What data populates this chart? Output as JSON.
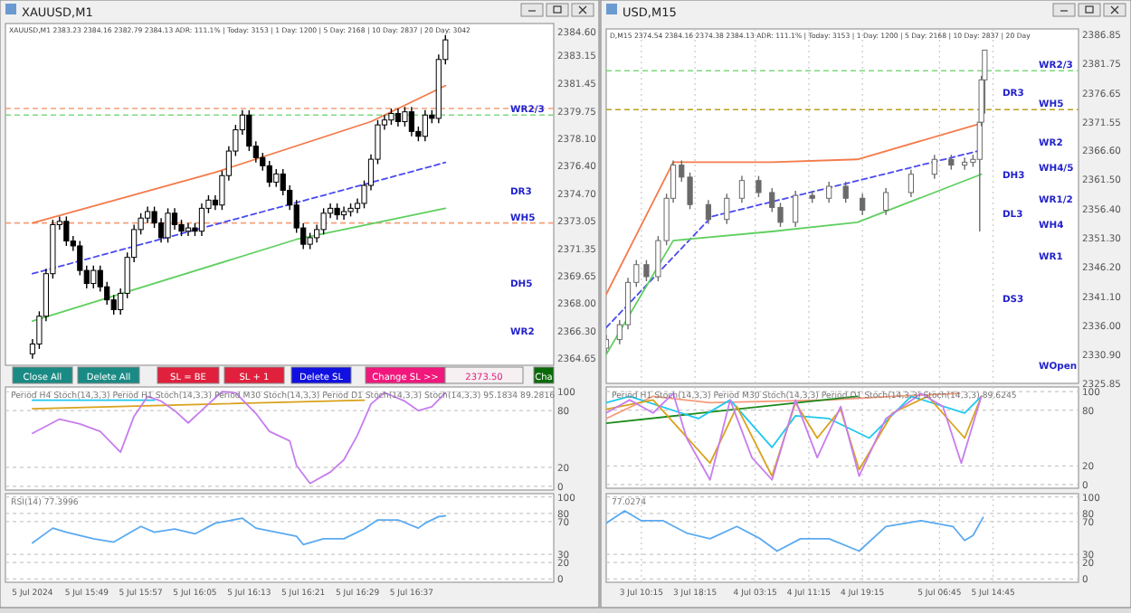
{
  "chart_data": [
    {
      "type": "candlestick",
      "title": "XAUUSD,M1",
      "subtitle": "XAUUSD,M1 2383.23 2384.16 2382.79 2384.13   ADR: 111.1% | Today: 3153 | 1 Day: 1200 | 5 Day: 2168 | 10 Day: 2837 | 20 Day: 3042",
      "color": "#000000",
      "tick_labels": "y",
      "x": [
        "2024-07-05T15:41",
        "2024-07-05T15:42",
        "2024-07-05T15:43",
        "2024-07-05T15:44",
        "2024-07-05T15:45",
        "2024-07-05T15:46",
        "2024-07-05T15:47",
        "2024-07-05T15:48",
        "2024-07-05T15:49",
        "2024-07-05T15:50",
        "2024-07-05T15:51",
        "2024-07-05T15:52",
        "2024-07-05T15:53",
        "2024-07-05T15:54",
        "2024-07-05T15:55",
        "2024-07-05T15:56",
        "2024-07-05T15:57",
        "2024-07-05T15:58",
        "2024-07-05T15:59",
        "2024-07-05T16:00",
        "2024-07-05T16:01",
        "2024-07-05T16:02",
        "2024-07-05T16:03",
        "2024-07-05T16:04",
        "2024-07-05T16:05",
        "2024-07-05T16:06",
        "2024-07-05T16:07",
        "2024-07-05T16:08",
        "2024-07-05T16:09",
        "2024-07-05T16:10",
        "2024-07-05T16:11",
        "2024-07-05T16:12",
        "2024-07-05T16:13",
        "2024-07-05T16:14",
        "2024-07-05T16:15",
        "2024-07-05T16:16",
        "2024-07-05T16:17",
        "2024-07-05T16:18",
        "2024-07-05T16:19",
        "2024-07-05T16:20",
        "2024-07-05T16:21",
        "2024-07-05T16:22",
        "2024-07-05T16:23",
        "2024-07-05T16:24",
        "2024-07-05T16:25",
        "2024-07-05T16:26",
        "2024-07-05T16:27",
        "2024-07-05T16:28",
        "2024-07-05T16:29",
        "2024-07-05T16:30",
        "2024-07-05T16:31",
        "2024-07-05T16:32",
        "2024-07-05T16:33",
        "2024-07-05T16:34",
        "2024-07-05T16:35",
        "2024-07-05T16:36",
        "2024-07-05T16:37",
        "2024-07-05T16:38",
        "2024-07-05T16:39",
        "2024-07-05T16:40",
        "2024-07-05T16:41",
        "2024-07-05T16:42"
      ],
      "ohlc": [
        [
          2364.9,
          2365.8,
          2364.6,
          2365.5
        ],
        [
          2365.5,
          2367.5,
          2365.2,
          2367.2
        ],
        [
          2367.2,
          2370.1,
          2366.9,
          2369.8
        ],
        [
          2369.8,
          2373.1,
          2369.5,
          2372.8
        ],
        [
          2372.8,
          2373.3,
          2372.5,
          2373.0
        ],
        [
          2373.0,
          2373.3,
          2371.5,
          2371.8
        ],
        [
          2371.8,
          2372.1,
          2371.2,
          2371.5
        ],
        [
          2371.5,
          2371.8,
          2369.7,
          2370.0
        ],
        [
          2370.0,
          2370.3,
          2368.9,
          2369.2
        ],
        [
          2369.2,
          2370.3,
          2368.9,
          2370.0
        ],
        [
          2370.0,
          2370.3,
          2368.7,
          2369.0
        ],
        [
          2369.0,
          2369.3,
          2367.9,
          2368.2
        ],
        [
          2368.2,
          2368.5,
          2367.3,
          2367.6
        ],
        [
          2367.6,
          2368.9,
          2367.3,
          2368.6
        ],
        [
          2368.6,
          2371.1,
          2368.3,
          2370.8
        ],
        [
          2370.8,
          2372.8,
          2370.5,
          2372.5
        ],
        [
          2372.5,
          2373.5,
          2372.2,
          2373.2
        ],
        [
          2373.2,
          2373.9,
          2372.9,
          2373.6
        ],
        [
          2373.6,
          2373.9,
          2372.6,
          2372.9
        ],
        [
          2372.9,
          2373.2,
          2371.7,
          2372.0
        ],
        [
          2372.0,
          2373.8,
          2371.7,
          2373.5
        ],
        [
          2373.5,
          2373.8,
          2372.5,
          2372.8
        ],
        [
          2372.8,
          2373.1,
          2372.1,
          2372.4
        ],
        [
          2372.4,
          2372.9,
          2372.1,
          2372.6
        ],
        [
          2372.6,
          2372.9,
          2372.1,
          2372.4
        ],
        [
          2372.4,
          2374.1,
          2372.1,
          2373.8
        ],
        [
          2373.8,
          2374.6,
          2373.5,
          2374.3
        ],
        [
          2374.3,
          2374.6,
          2373.7,
          2374.0
        ],
        [
          2374.0,
          2376.1,
          2373.7,
          2375.8
        ],
        [
          2375.8,
          2377.6,
          2375.5,
          2377.3
        ],
        [
          2377.3,
          2378.9,
          2377.0,
          2378.6
        ],
        [
          2378.6,
          2379.8,
          2378.3,
          2379.5
        ],
        [
          2379.5,
          2379.8,
          2377.3,
          2377.6
        ],
        [
          2377.6,
          2377.9,
          2376.6,
          2376.9
        ],
        [
          2376.9,
          2377.2,
          2376.1,
          2376.4
        ],
        [
          2376.4,
          2376.7,
          2375.1,
          2375.4
        ],
        [
          2375.4,
          2376.2,
          2375.1,
          2375.9
        ],
        [
          2375.9,
          2376.2,
          2374.6,
          2374.9
        ],
        [
          2374.9,
          2375.2,
          2373.7,
          2374.0
        ],
        [
          2374.0,
          2374.3,
          2372.3,
          2372.6
        ],
        [
          2372.6,
          2372.9,
          2371.3,
          2371.6
        ],
        [
          2371.6,
          2372.3,
          2371.3,
          2372.0
        ],
        [
          2372.0,
          2372.8,
          2371.7,
          2372.5
        ],
        [
          2372.5,
          2373.8,
          2372.2,
          2373.5
        ],
        [
          2373.5,
          2374.1,
          2373.2,
          2373.8
        ],
        [
          2373.8,
          2374.1,
          2373.1,
          2373.4
        ],
        [
          2373.4,
          2373.9,
          2373.1,
          2373.6
        ],
        [
          2373.6,
          2374.1,
          2373.3,
          2373.8
        ],
        [
          2373.8,
          2374.4,
          2373.5,
          2374.1
        ],
        [
          2374.1,
          2375.5,
          2373.8,
          2375.2
        ],
        [
          2375.2,
          2377.1,
          2374.9,
          2376.8
        ],
        [
          2376.8,
          2379.2,
          2376.5,
          2378.9
        ],
        [
          2378.9,
          2379.5,
          2378.6,
          2379.2
        ],
        [
          2379.2,
          2379.9,
          2378.9,
          2379.6
        ],
        [
          2379.6,
          2379.9,
          2378.8,
          2379.1
        ],
        [
          2379.1,
          2380.0,
          2378.8,
          2379.7
        ],
        [
          2379.7,
          2380.0,
          2378.2,
          2378.5
        ],
        [
          2378.5,
          2378.8,
          2377.9,
          2378.2
        ],
        [
          2378.2,
          2379.8,
          2377.9,
          2379.5
        ],
        [
          2379.5,
          2379.8,
          2379.0,
          2379.3
        ],
        [
          2379.3,
          2383.2,
          2379.0,
          2382.9
        ],
        [
          2382.9,
          2384.4,
          2382.6,
          2384.1
        ]
      ],
      "series": [
        {
          "type": "line",
          "color": "#f47a4a",
          "x": [
            "2024-07-05T15:41",
            "2024-07-05T16:08",
            "2024-07-05T16:31",
            "2024-07-05T16:42"
          ],
          "values": [
            2372.9,
            2376.0,
            2379.1,
            2381.3
          ]
        },
        {
          "type": "line",
          "color": "#4a4af0",
          "line_style": "dashed",
          "x": [
            "2024-07-05T15:41",
            "2024-07-05T16:42"
          ],
          "values": [
            2369.8,
            2376.6
          ]
        },
        {
          "type": "line",
          "color": "#5fcf5f",
          "x": [
            "2024-07-05T15:41",
            "2024-07-05T16:20",
            "2024-07-05T16:42"
          ],
          "values": [
            2366.9,
            2371.9,
            2373.8
          ]
        }
      ],
      "ref_lines": [
        {
          "axis": "y",
          "value": 2379.9,
          "color": "#f4a07a",
          "line_style": "dashed"
        },
        {
          "axis": "y",
          "value": 2379.5,
          "color": "#7fd87f",
          "line_style": "dashed",
          "label": "WR2/3"
        },
        {
          "axis": "y",
          "value": 2372.9,
          "color": "#f4a07a",
          "line_style": "dashed",
          "label": "WH5"
        }
      ],
      "annotations": [
        "Close All",
        "Delete All",
        "SL = BE",
        "SL + 1",
        "Delete SL",
        "Change SL >>",
        "2373.50",
        "Cha",
        "DR3",
        "DH5",
        "WR2"
      ],
      "xlim": [
        "2024-07-05T15:37",
        "2024-07-05T16:58"
      ],
      "ylim": [
        2364.2,
        2385.1
      ],
      "yticks": [
        {
          "value": 2384.6,
          "label": "2384.60"
        },
        {
          "value": 2383.15,
          "label": "2383.15"
        },
        {
          "value": 2381.45,
          "label": "2381.45"
        },
        {
          "value": 2379.75,
          "label": "2379.75"
        },
        {
          "value": 2378.1,
          "label": "2378.10"
        },
        {
          "value": 2376.4,
          "label": "2376.40"
        },
        {
          "value": 2374.7,
          "label": "2374.70"
        },
        {
          "value": 2373.05,
          "label": "2373.05"
        },
        {
          "value": 2371.35,
          "label": "2371.35"
        },
        {
          "value": 2369.65,
          "label": "2369.65"
        },
        {
          "value": 2368.0,
          "label": "2368.00"
        },
        {
          "value": 2366.3,
          "label": "2366.30"
        },
        {
          "value": 2364.65,
          "label": "2364.65"
        }
      ]
    },
    {
      "type": "line",
      "title": "Period H4 Stoch(14,3,3)  Period H1 Stoch(14,3,3)  Period M30 Stoch(14,3,3)  Period D1 Stoch(14,3,3)  Stoch(14,3,3) 95.1834 89.2816",
      "tick_labels": "y",
      "grid": "y",
      "series": [
        {
          "color": "#1ec8f0",
          "x": [
            "2024-07-05T15:41",
            "2024-07-05T15:59"
          ],
          "values": [
            91,
            91
          ]
        },
        {
          "color": "#d9a21b",
          "x": [
            "2024-07-05T15:41",
            "2024-07-05T16:30"
          ],
          "values": [
            82,
            91
          ]
        },
        {
          "color": "#c77dee",
          "x": [
            "2024-07-05T15:41",
            "2024-07-05T15:45",
            "2024-07-05T15:48",
            "2024-07-05T15:51",
            "2024-07-05T15:54",
            "2024-07-05T15:56",
            "2024-07-05T15:58",
            "2024-07-05T16:00",
            "2024-07-05T16:02",
            "2024-07-05T16:04",
            "2024-07-05T16:07",
            "2024-07-05T16:09",
            "2024-07-05T16:11",
            "2024-07-05T16:14",
            "2024-07-05T16:16",
            "2024-07-05T16:19",
            "2024-07-05T16:20",
            "2024-07-05T16:22",
            "2024-07-05T16:25",
            "2024-07-05T16:27",
            "2024-07-05T16:29",
            "2024-07-05T16:31",
            "2024-07-05T16:33",
            "2024-07-05T16:36",
            "2024-07-05T16:38",
            "2024-07-05T16:40",
            "2024-07-05T16:42"
          ],
          "values": [
            56,
            71,
            66,
            58,
            36,
            74,
            95,
            90,
            80,
            67,
            87,
            100,
            99,
            77,
            58,
            48,
            22,
            3,
            15,
            28,
            54,
            87,
            99,
            90,
            80,
            84,
            99
          ]
        }
      ],
      "xlim": [
        "2024-07-05T15:37",
        "2024-07-05T16:58"
      ],
      "ylim": [
        -4,
        105
      ],
      "yticks": [
        0,
        20,
        80,
        100
      ]
    },
    {
      "type": "line",
      "title": "RSI(14) 77.3996",
      "grid": "y",
      "series": [
        {
          "color": "#5aaaf0",
          "x": [
            "2024-07-05T15:41",
            "2024-07-05T15:44",
            "2024-07-05T15:46",
            "2024-07-05T15:50",
            "2024-07-05T15:53",
            "2024-07-05T15:57",
            "2024-07-05T15:59",
            "2024-07-05T16:02",
            "2024-07-05T16:05",
            "2024-07-05T16:08",
            "2024-07-05T16:12",
            "2024-07-05T16:14",
            "2024-07-05T16:17",
            "2024-07-05T16:20",
            "2024-07-05T16:21",
            "2024-07-05T16:24",
            "2024-07-05T16:27",
            "2024-07-05T16:30",
            "2024-07-05T16:32",
            "2024-07-05T16:35",
            "2024-07-05T16:38",
            "2024-07-05T16:39",
            "2024-07-05T16:41",
            "2024-07-05T16:42"
          ],
          "values": [
            44,
            62,
            57,
            49,
            45,
            64,
            57,
            61,
            55,
            68,
            74,
            62,
            57,
            52,
            42,
            49,
            49,
            61,
            72,
            72,
            62,
            68,
            76,
            77
          ]
        }
      ],
      "xlim": [
        "2024-07-05T15:37",
        "2024-07-05T16:58"
      ],
      "ylim": [
        -4,
        104
      ],
      "yticks": [
        0,
        20,
        30,
        70,
        80,
        100
      ],
      "xticks": [
        {
          "value": "2024-07-05T15:41",
          "label": "5 Jul 2024"
        },
        {
          "value": "2024-07-05T15:49",
          "label": "5 Jul 15:49"
        },
        {
          "value": "2024-07-05T15:57",
          "label": "5 Jul 15:57"
        },
        {
          "value": "2024-07-05T16:05",
          "label": "5 Jul 16:05"
        },
        {
          "value": "2024-07-05T16:13",
          "label": "5 Jul 16:13"
        },
        {
          "value": "2024-07-05T16:21",
          "label": "5 Jul 16:21"
        },
        {
          "value": "2024-07-05T16:29",
          "label": "5 Jul 16:29"
        },
        {
          "value": "2024-07-05T16:37",
          "label": "5 Jul 16:37"
        }
      ]
    },
    {
      "type": "candlestick",
      "title": "USD,M15",
      "subtitle": "D,M15 2374.54 2384.16 2374.38 2384.13   ADR: 111.1% | Today: 3153 | 1 Day: 1200 | 5 Day: 2168 | 10 Day: 2837 | 20 Day",
      "color": "#6a6a6a",
      "tick_labels": "y",
      "grid": "x",
      "x": [
        "2024-07-03T05:00",
        "2024-07-03T07:00",
        "2024-07-03T08:15",
        "2024-07-03T09:30",
        "2024-07-03T11:00",
        "2024-07-03T12:45",
        "2024-07-03T14:00",
        "2024-07-03T15:00",
        "2024-07-03T16:15",
        "2024-07-03T17:30",
        "2024-07-03T20:15",
        "2024-07-03T23:00",
        "2024-07-04T01:15",
        "2024-07-04T03:45",
        "2024-07-04T05:45",
        "2024-07-04T07:00",
        "2024-07-04T09:15",
        "2024-07-04T11:45",
        "2024-07-04T14:15",
        "2024-07-04T16:45",
        "2024-07-04T19:15",
        "2024-07-04T22:45",
        "2024-07-05T02:30",
        "2024-07-05T06:00",
        "2024-07-05T08:30",
        "2024-07-05T10:30",
        "2024-07-05T11:45",
        "2024-07-05T12:45",
        "2024-07-05T13:00",
        "2024-07-05T13:30"
      ],
      "ohlc": [
        [
          2332.0,
          2334.3,
          2331.2,
          2333.5
        ],
        [
          2333.5,
          2336.9,
          2332.7,
          2336.1
        ],
        [
          2336.1,
          2344.3,
          2335.3,
          2343.5
        ],
        [
          2343.5,
          2347.4,
          2342.7,
          2346.6
        ],
        [
          2346.6,
          2347.4,
          2343.7,
          2344.5
        ],
        [
          2344.5,
          2351.6,
          2343.7,
          2350.8
        ],
        [
          2350.8,
          2359.0,
          2350.0,
          2358.2
        ],
        [
          2358.2,
          2364.8,
          2357.4,
          2364.0
        ],
        [
          2364.0,
          2364.8,
          2361.1,
          2361.9
        ],
        [
          2361.9,
          2362.7,
          2356.3,
          2357.1
        ],
        [
          2357.1,
          2357.9,
          2353.7,
          2354.5
        ],
        [
          2354.5,
          2359.0,
          2353.7,
          2358.2
        ],
        [
          2358.2,
          2362.1,
          2357.4,
          2361.3
        ],
        [
          2361.3,
          2362.1,
          2358.4,
          2359.2
        ],
        [
          2359.2,
          2360.0,
          2355.8,
          2356.6
        ],
        [
          2356.6,
          2357.4,
          2353.2,
          2354.0
        ],
        [
          2354.0,
          2359.5,
          2353.2,
          2358.7
        ],
        [
          2358.7,
          2359.5,
          2357.4,
          2358.2
        ],
        [
          2358.2,
          2361.1,
          2357.4,
          2360.3
        ],
        [
          2360.3,
          2361.1,
          2357.4,
          2358.2
        ],
        [
          2358.2,
          2359.0,
          2355.3,
          2356.1
        ],
        [
          2356.1,
          2360.0,
          2355.3,
          2359.2
        ],
        [
          2359.2,
          2363.2,
          2358.4,
          2362.4
        ],
        [
          2362.4,
          2365.8,
          2361.6,
          2365.0
        ],
        [
          2365.0,
          2365.8,
          2363.2,
          2364.0
        ],
        [
          2364.0,
          2365.3,
          2363.2,
          2364.5
        ],
        [
          2364.5,
          2365.8,
          2363.7,
          2365.0
        ],
        [
          2365.0,
          2372.0,
          2352.4,
          2371.5
        ],
        [
          2371.5,
          2379.6,
          2370.8,
          2378.9
        ],
        [
          2378.9,
          2384.1,
          2373.0,
          2384.1
        ]
      ],
      "series": [
        {
          "type": "line",
          "color": "#f47a4a",
          "x": [
            "2024-07-03T05:00",
            "2024-07-03T15:00",
            "2024-07-04T05:45",
            "2024-07-04T18:30",
            "2024-07-05T13:00"
          ],
          "values": [
            2341.4,
            2364.5,
            2364.5,
            2365.0,
            2371.3
          ]
        },
        {
          "type": "line",
          "color": "#4a4af0",
          "line_style": "dashed",
          "x": [
            "2024-07-03T05:00",
            "2024-07-03T20:45",
            "2024-07-05T13:00"
          ],
          "values": [
            2335.6,
            2355.0,
            2366.6
          ]
        },
        {
          "type": "line",
          "color": "#5fcf5f",
          "x": [
            "2024-07-03T05:00",
            "2024-07-03T15:00",
            "2024-07-04T05:45",
            "2024-07-04T18:30",
            "2024-07-05T13:00"
          ],
          "values": [
            2330.9,
            2350.8,
            2352.4,
            2354.0,
            2362.4
          ]
        }
      ],
      "ref_lines": [
        {
          "axis": "y",
          "value": 2380.5,
          "color": "#7fd87f",
          "line_style": "dashed",
          "label": "WR2/3"
        },
        {
          "axis": "y",
          "value": 2373.7,
          "color": "#b8a020",
          "line_style": "dashed",
          "label": "WH5"
        }
      ],
      "annotations": [
        "DR3",
        "DH3",
        "DL3",
        "DS3",
        "WR2",
        "WH4/5",
        "WR1/2",
        "WH4",
        "WR1",
        "WOpen"
      ],
      "xlim": [
        "2024-07-03T05:00",
        "2024-07-06T03:30"
      ],
      "ylim": [
        2325.85,
        2387.8
      ],
      "xticks": [
        {
          "value": "2024-07-03T10:15",
          "label": null
        },
        {
          "value": "2024-07-03T18:15",
          "label": null
        },
        {
          "value": "2024-07-04T03:15",
          "label": null
        },
        {
          "value": "2024-07-04T11:15",
          "label": null
        },
        {
          "value": "2024-07-04T19:15",
          "label": null
        },
        {
          "value": "2024-07-05T06:45",
          "label": null
        },
        {
          "value": "2024-07-05T14:45",
          "label": null
        }
      ],
      "yticks": [
        {
          "value": 2386.85,
          "label": "2386.85"
        },
        {
          "value": 2381.75,
          "label": "2381.75"
        },
        {
          "value": 2376.65,
          "label": "2376.65"
        },
        {
          "value": 2371.55,
          "label": "2371.55"
        },
        {
          "value": 2366.6,
          "label": "2366.60"
        },
        {
          "value": 2361.5,
          "label": "2361.50"
        },
        {
          "value": 2356.4,
          "label": "2356.40"
        },
        {
          "value": 2351.3,
          "label": "2351.30"
        },
        {
          "value": 2346.2,
          "label": "2346.20"
        },
        {
          "value": 2341.1,
          "label": "2341.10"
        },
        {
          "value": 2336.0,
          "label": "2336.00"
        },
        {
          "value": 2330.9,
          "label": "2330.90"
        },
        {
          "value": 2325.85,
          "label": "2325.85"
        }
      ]
    },
    {
      "type": "line",
      "title": "Period H1 Stoch(14,3,3)  Period M30 Stoch(14,3,3)  Period D1 Stoch(14,3,3)  Stoch(14,3,3) 89.6245",
      "tick_labels": "y",
      "grid": true,
      "series": [
        {
          "color": "#f49a7a",
          "x": [
            "2024-07-03T05:00",
            "2024-07-03T12:00",
            "2024-07-03T20:30",
            "2024-07-04T14:15",
            "2024-07-04T23:45",
            "2024-07-05T09:45"
          ],
          "values": [
            71,
            95,
            88,
            91,
            95,
            98
          ]
        },
        {
          "color": "#1a8a1a",
          "x": [
            "2024-07-03T05:00",
            "2024-07-04T18:30"
          ],
          "values": [
            66,
            95
          ]
        },
        {
          "color": "#1ec8f0",
          "x": [
            "2024-07-03T05:00",
            "2024-07-03T08:30",
            "2024-07-03T18:45",
            "2024-07-03T23:30",
            "2024-07-04T05:45",
            "2024-07-04T09:15",
            "2024-07-04T14:15",
            "2024-07-04T20:15",
            "2024-07-05T02:30",
            "2024-07-05T10:30",
            "2024-07-05T13:00"
          ],
          "values": [
            88,
            95,
            71,
            91,
            40,
            74,
            71,
            50,
            95,
            77,
            95
          ]
        },
        {
          "color": "#d9a21b",
          "x": [
            "2024-07-03T05:00",
            "2024-07-03T12:00",
            "2024-07-03T20:30",
            "2024-07-04T00:30",
            "2024-07-04T05:45",
            "2024-07-04T09:15",
            "2024-07-04T12:30",
            "2024-07-04T16:00",
            "2024-07-04T18:45",
            "2024-07-04T23:45",
            "2024-07-05T05:00",
            "2024-07-05T10:30",
            "2024-07-05T13:00"
          ],
          "values": [
            81,
            91,
            23,
            84,
            9,
            88,
            50,
            81,
            16,
            77,
            95,
            50,
            95
          ]
        },
        {
          "color": "#c77dee",
          "x": [
            "2024-07-03T05:00",
            "2024-07-03T08:30",
            "2024-07-03T12:00",
            "2024-07-03T15:00",
            "2024-07-03T17:00",
            "2024-07-03T20:30",
            "2024-07-03T23:30",
            "2024-07-04T02:45",
            "2024-07-04T05:45",
            "2024-07-04T09:15",
            "2024-07-04T12:30",
            "2024-07-04T16:00",
            "2024-07-04T18:45",
            "2024-07-04T22:45",
            "2024-07-05T04:00",
            "2024-07-05T07:15",
            "2024-07-05T10:00",
            "2024-07-05T13:00"
          ],
          "values": [
            77,
            91,
            77,
            98,
            50,
            5,
            91,
            29,
            5,
            91,
            29,
            84,
            9,
            71,
            98,
            84,
            23,
            95
          ]
        }
      ],
      "xlim": [
        "2024-07-03T05:00",
        "2024-07-06T03:30"
      ],
      "ylim": [
        -4,
        105
      ],
      "xticks": [
        {
          "value": "2024-07-03T10:15",
          "label": null
        },
        {
          "value": "2024-07-03T18:15",
          "label": null
        },
        {
          "value": "2024-07-04T03:15",
          "label": null
        },
        {
          "value": "2024-07-04T11:15",
          "label": null
        },
        {
          "value": "2024-07-04T19:15",
          "label": null
        },
        {
          "value": "2024-07-05T06:45",
          "label": null
        },
        {
          "value": "2024-07-05T14:45",
          "label": null
        }
      ],
      "yticks": [
        0,
        20,
        80,
        100
      ]
    },
    {
      "type": "line",
      "title": "77.0274",
      "grid": true,
      "series": [
        {
          "color": "#5aaaf0",
          "x": [
            "2024-07-03T05:00",
            "2024-07-03T07:45",
            "2024-07-03T10:15",
            "2024-07-03T13:30",
            "2024-07-03T17:00",
            "2024-07-03T20:30",
            "2024-07-04T00:30",
            "2024-07-04T04:00",
            "2024-07-04T06:30",
            "2024-07-04T10:00",
            "2024-07-04T14:15",
            "2024-07-04T18:45",
            "2024-07-04T22:45",
            "2024-07-05T04:00",
            "2024-07-05T08:45",
            "2024-07-05T10:30",
            "2024-07-05T11:45",
            "2024-07-05T13:15"
          ],
          "values": [
            68,
            83,
            71,
            71,
            56,
            49,
            64,
            49,
            34,
            49,
            49,
            34,
            64,
            71,
            64,
            47,
            53,
            75
          ]
        }
      ],
      "xlim": [
        "2024-07-03T05:00",
        "2024-07-06T03:30"
      ],
      "ylim": [
        -4,
        104
      ],
      "yticks": [
        0,
        20,
        30,
        70,
        80,
        100
      ],
      "xticks": [
        {
          "value": "2024-07-03T10:15",
          "label": "3 Jul 10:15"
        },
        {
          "value": "2024-07-03T18:15",
          "label": "3 Jul 18:15"
        },
        {
          "value": "2024-07-04T03:15",
          "label": "4 Jul 03:15"
        },
        {
          "value": "2024-07-04T11:15",
          "label": "4 Jul 11:15"
        },
        {
          "value": "2024-07-04T19:15",
          "label": "4 Jul 19:15"
        },
        {
          "value": "2024-07-05T06:45",
          "label": "5 Jul 06:45"
        },
        {
          "value": "2024-07-05T14:45",
          "label": "5 Jul 14:45"
        }
      ]
    }
  ]
}
